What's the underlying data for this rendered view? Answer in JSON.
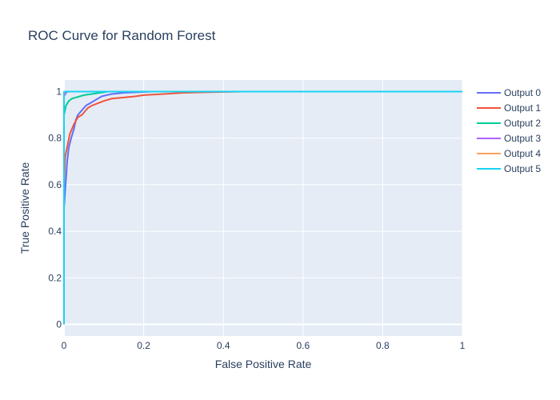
{
  "chart_data": {
    "type": "line",
    "title": "ROC Curve for Random Forest",
    "xlabel": "False Positive Rate",
    "ylabel": "True Positive Rate",
    "xlim": [
      0,
      1
    ],
    "ylim": [
      -0.05,
      1.05
    ],
    "x_ticks": [
      "0",
      "0.2",
      "0.4",
      "0.6",
      "0.8",
      "1"
    ],
    "y_ticks": [
      "0",
      "0.2",
      "0.4",
      "0.6",
      "0.8",
      "1"
    ],
    "grid": true,
    "legend_position": "right",
    "plot_bg": "#e5ecf6",
    "series": [
      {
        "name": "Output 0",
        "color": "#636efa",
        "points": [
          [
            0,
            0
          ],
          [
            0,
            0.5
          ],
          [
            0.004,
            0.6
          ],
          [
            0.008,
            0.7
          ],
          [
            0.012,
            0.76
          ],
          [
            0.018,
            0.8
          ],
          [
            0.025,
            0.84
          ],
          [
            0.03,
            0.88
          ],
          [
            0.035,
            0.9
          ],
          [
            0.045,
            0.92
          ],
          [
            0.055,
            0.94
          ],
          [
            0.065,
            0.95
          ],
          [
            0.075,
            0.96
          ],
          [
            0.085,
            0.97
          ],
          [
            0.095,
            0.98
          ],
          [
            0.12,
            0.99
          ],
          [
            0.15,
            0.995
          ],
          [
            0.22,
            1
          ],
          [
            1,
            1
          ]
        ]
      },
      {
        "name": "Output 1",
        "color": "#ef553b",
        "points": [
          [
            0,
            0
          ],
          [
            0,
            0.6
          ],
          [
            0.003,
            0.72
          ],
          [
            0.01,
            0.78
          ],
          [
            0.015,
            0.82
          ],
          [
            0.025,
            0.86
          ],
          [
            0.035,
            0.89
          ],
          [
            0.045,
            0.9
          ],
          [
            0.06,
            0.93
          ],
          [
            0.07,
            0.94
          ],
          [
            0.085,
            0.95
          ],
          [
            0.1,
            0.96
          ],
          [
            0.12,
            0.97
          ],
          [
            0.15,
            0.975
          ],
          [
            0.18,
            0.98
          ],
          [
            0.2,
            0.985
          ],
          [
            0.25,
            0.99
          ],
          [
            0.3,
            0.995
          ],
          [
            0.35,
            0.997
          ],
          [
            0.45,
            1
          ],
          [
            1,
            1
          ]
        ]
      },
      {
        "name": "Output 2",
        "color": "#00cc96",
        "points": [
          [
            0,
            0
          ],
          [
            0,
            0.9
          ],
          [
            0.005,
            0.94
          ],
          [
            0.012,
            0.96
          ],
          [
            0.02,
            0.97
          ],
          [
            0.03,
            0.975
          ],
          [
            0.04,
            0.98
          ],
          [
            0.05,
            0.985
          ],
          [
            0.07,
            0.99
          ],
          [
            0.09,
            0.995
          ],
          [
            0.11,
            1
          ],
          [
            1,
            1
          ]
        ]
      },
      {
        "name": "Output 3",
        "color": "#ab63fa",
        "points": [
          [
            0,
            0
          ],
          [
            0,
            0.98
          ],
          [
            0.005,
            0.995
          ],
          [
            0.01,
            1
          ],
          [
            1,
            1
          ]
        ]
      },
      {
        "name": "Output 4",
        "color": "#ffa15a",
        "points": [
          [
            0,
            0
          ],
          [
            0,
            0.99
          ],
          [
            0.003,
            1
          ],
          [
            1,
            1
          ]
        ]
      },
      {
        "name": "Output 5",
        "color": "#19d3f3",
        "points": [
          [
            0,
            0
          ],
          [
            0,
            1
          ],
          [
            1,
            1
          ]
        ]
      }
    ]
  }
}
